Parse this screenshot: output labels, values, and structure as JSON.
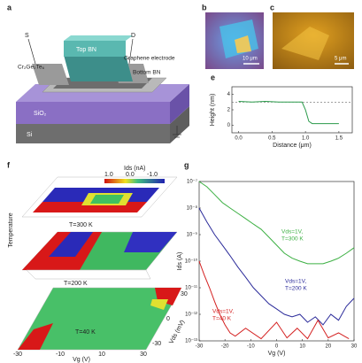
{
  "panels": {
    "a": {
      "label": "a",
      "source": "S",
      "drain": "D",
      "top_bn": "Top BN",
      "cgt": "Cr₂Ge₂Te₆",
      "electrode": "Graphene electrode",
      "bottom_bn": "Bottom BN",
      "sio2": "SiO₂",
      "si": "Si"
    },
    "b": {
      "label": "b",
      "scale": "10 μm"
    },
    "c": {
      "label": "c",
      "scale": "5 μm"
    },
    "e": {
      "label": "e",
      "chart": {
        "type": "line",
        "xlabel": "Distance (μm)",
        "ylabel": "Height (nm)",
        "xlim": [
          -0.1,
          1.7
        ],
        "ylim": [
          -1,
          5
        ],
        "xticks": [
          {
            "value": 0,
            "label": "0.0"
          },
          0.5,
          {
            "value": 1,
            "label": "1.0"
          },
          1.5
        ],
        "yticks": [
          0,
          2,
          4
        ],
        "reference": 3,
        "series": [
          {
            "color": "#2a9a4a",
            "x": [
              0,
              0.2,
              0.4,
              0.6,
              0.8,
              0.95,
              1.0,
              1.05,
              1.1,
              1.3,
              1.5
            ],
            "values": [
              3.1,
              3.0,
              3.1,
              3.0,
              3.0,
              3.0,
              2.0,
              0.5,
              0.2,
              0.2,
              0.2
            ]
          }
        ]
      }
    },
    "f": {
      "label": "f",
      "colorbar_title": "Ids (nA)",
      "colorbar_ticks": [
        "1.0",
        "0.0",
        "-1.0"
      ],
      "temperatures": [
        "T=300 K",
        "T=200 K",
        "T=40 K"
      ],
      "y_axis": "Temperature",
      "x_axis": "Vg (V)",
      "x_ticks": [
        "-30",
        "-10",
        "10",
        "30"
      ],
      "side_axis": "Vds (mV)",
      "side_ticks": [
        "-30",
        "0",
        "30"
      ]
    },
    "g": {
      "label": "g",
      "chart": {
        "type": "line",
        "xlabel": "Vg (V)",
        "ylabel": "Ids (A)",
        "log_y": true,
        "xlim": [
          -30,
          30
        ],
        "ylim": [
          1e-13,
          1e-07
        ],
        "xticks": [
          -30,
          -20,
          -10,
          0,
          10,
          20,
          30
        ],
        "yticks": [
          {
            "value": 1e-07,
            "label": "10⁻⁷"
          },
          {
            "value": 1e-08,
            "label": "10⁻⁸"
          },
          {
            "value": 1e-09,
            "label": "10⁻⁹"
          },
          {
            "value": 1e-10,
            "label": "10⁻¹⁰"
          },
          {
            "value": 1e-11,
            "label": "10⁻¹¹"
          },
          {
            "value": 1e-12,
            "label": "10⁻¹²"
          },
          {
            "value": 1e-13,
            "label": "10⁻¹³"
          }
        ],
        "series": [
          {
            "label_lines": [
              "Vds=1V,",
              "T=300 K"
            ],
            "color": "#3cb043",
            "x": [
              -30,
              -27,
              -24,
              -21,
              -18,
              -15,
              -12,
              -9,
              -6,
              -3,
              0,
              3,
              6,
              9,
              12,
              15,
              18,
              21,
              24,
              27,
              30
            ],
            "values": [
              1e-07,
              6.3e-08,
              3.2e-08,
              1.6e-08,
              1e-08,
              6.3e-09,
              4e-09,
              2.5e-09,
              1.6e-09,
              8e-10,
              4e-10,
              2e-10,
              1.3e-10,
              1e-10,
              8e-11,
              8e-11,
              8e-11,
              1e-10,
              1.3e-10,
              2e-10,
              3.2e-10
            ]
          },
          {
            "label_lines": [
              "Vds=1V,",
              "T=200 K"
            ],
            "color": "#2b2b9a",
            "x": [
              -30,
              -27,
              -24,
              -21,
              -18,
              -15,
              -12,
              -9,
              -6,
              -3,
              0,
              3,
              6,
              9,
              12,
              15,
              18,
              21,
              24,
              27,
              30
            ],
            "values": [
              1e-08,
              3e-09,
              1e-09,
              4e-10,
              1.6e-10,
              6e-11,
              2.5e-11,
              1e-11,
              5e-12,
              2.5e-12,
              1.6e-12,
              1e-12,
              8e-13,
              1e-12,
              5e-13,
              8e-13,
              4e-13,
              1e-12,
              6e-13,
              2e-12,
              4e-12
            ]
          },
          {
            "label_lines": [
              "Vds=1V,",
              "T=40 K"
            ],
            "color": "#d42020",
            "x": [
              -30,
              -28,
              -26,
              -24,
              -22,
              -20,
              -18,
              -16,
              -12,
              -6,
              0,
              4,
              8,
              12,
              16,
              20,
              24,
              28
            ],
            "values": [
              1e-10,
              3e-11,
              1e-11,
              3e-12,
              1e-12,
              4e-13,
              2e-13,
              1.5e-13,
              3e-13,
              1.2e-13,
              5e-13,
              1.3e-13,
              3e-13,
              1.2e-13,
              6e-13,
              1.3e-13,
              2e-13,
              1.2e-13
            ]
          }
        ]
      }
    }
  }
}
